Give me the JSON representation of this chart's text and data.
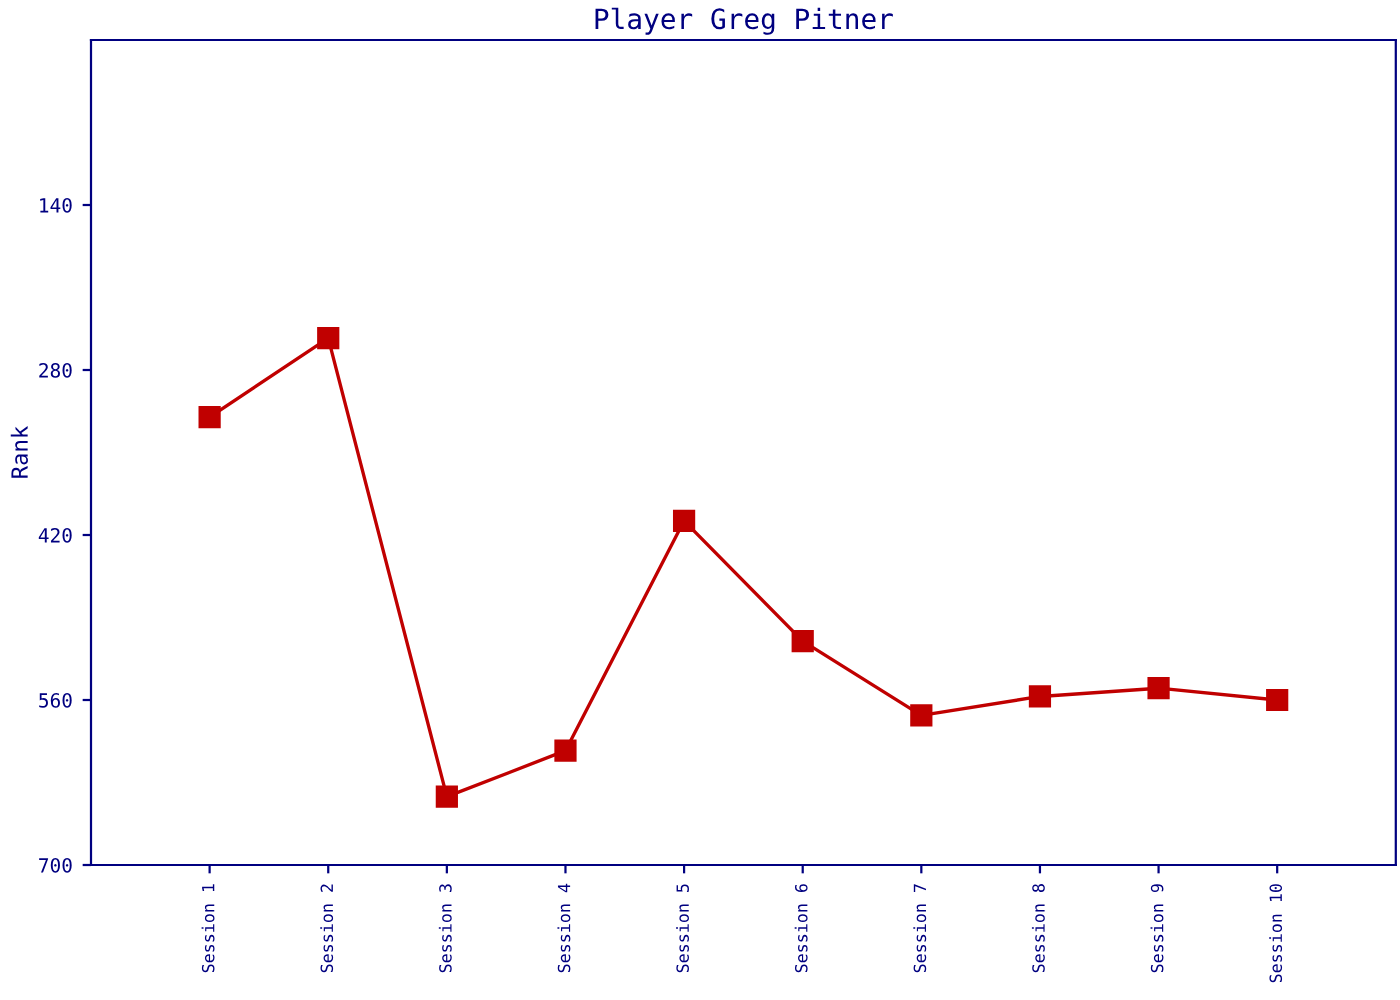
{
  "chart_data": {
    "type": "line",
    "title": "Player Greg Pitner",
    "ylabel": "Rank",
    "categories": [
      "Session 1",
      "Session 2",
      "Session 3",
      "Session 4",
      "Session 5",
      "Session 6",
      "Session 7",
      "Session 8",
      "Session 9",
      "Session 10"
    ],
    "series": [
      {
        "color": "#c00000",
        "values": [
          320,
          253,
          642,
          603,
          408,
          510,
          573,
          557,
          550,
          560
        ]
      }
    ],
    "ylim": [
      700,
      0
    ],
    "yticks": [
      140,
      280,
      420,
      560,
      700
    ],
    "marker": "square",
    "line_style": "solid",
    "grid": false
  }
}
